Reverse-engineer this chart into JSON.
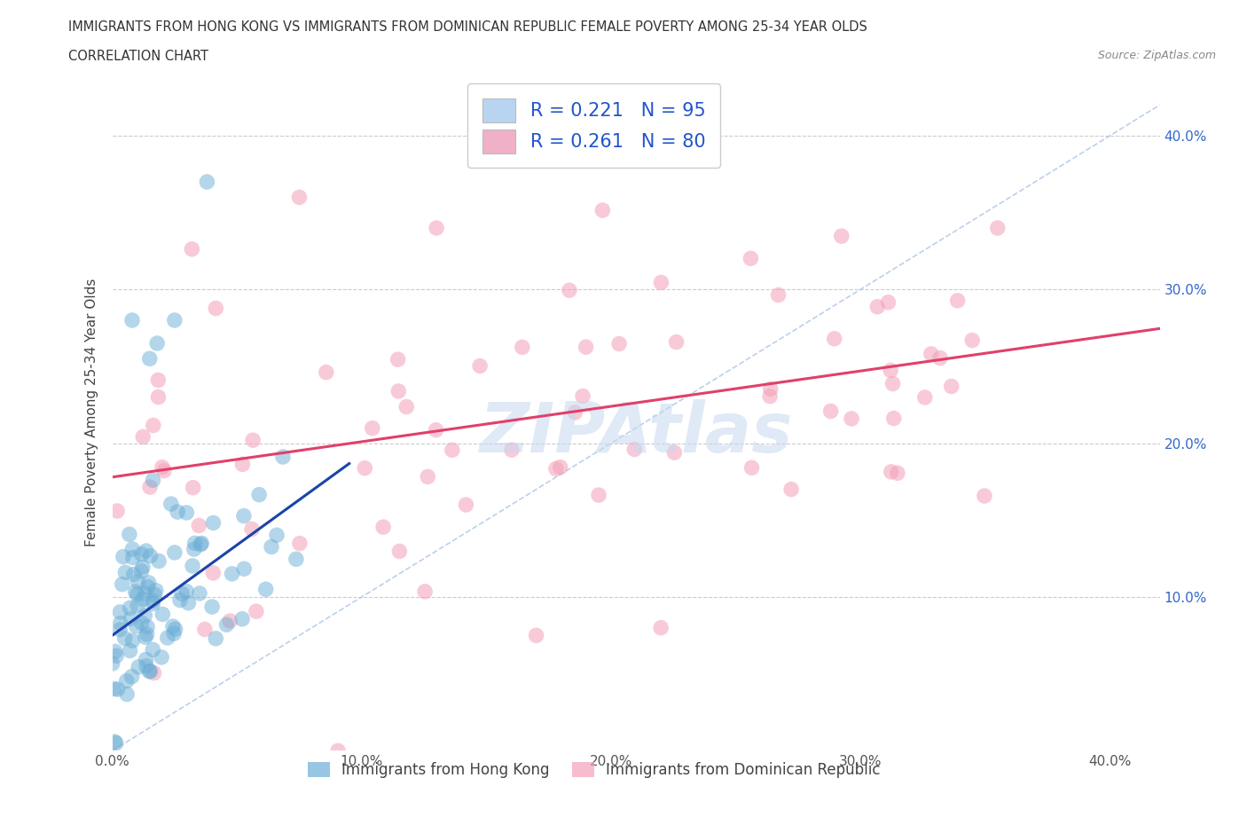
{
  "title_line1": "IMMIGRANTS FROM HONG KONG VS IMMIGRANTS FROM DOMINICAN REPUBLIC FEMALE POVERTY AMONG 25-34 YEAR OLDS",
  "title_line2": "CORRELATION CHART",
  "source_text": "Source: ZipAtlas.com",
  "ylabel": "Female Poverty Among 25-34 Year Olds",
  "xlim": [
    0.0,
    0.42
  ],
  "ylim": [
    0.0,
    0.44
  ],
  "xticks": [
    0.0,
    0.1,
    0.2,
    0.3,
    0.4
  ],
  "yticks": [
    0.0,
    0.1,
    0.2,
    0.3,
    0.4
  ],
  "xticklabels": [
    "0.0%",
    "10.0%",
    "20.0%",
    "30.0%",
    "40.0%"
  ],
  "left_yticklabels": [
    "",
    "",
    "",
    "",
    ""
  ],
  "right_yticklabels": [
    "",
    "10.0%",
    "20.0%",
    "30.0%",
    "40.0%"
  ],
  "legend_entries": [
    {
      "label": "R = 0.221   N = 95",
      "color": "#b8d4f0"
    },
    {
      "label": "R = 0.261   N = 80",
      "color": "#f0b0c8"
    }
  ],
  "hk_color": "#6baed6",
  "dr_color": "#f4a0b8",
  "hk_trend_color": "#1a44aa",
  "dr_trend_color": "#e0406a",
  "diag_color": "#b0c8e8",
  "watermark": "ZIPAtlas",
  "watermark_color": "#c8d8f0",
  "grid_color": "#cccccc",
  "title_color": "#333333",
  "hk_N": 95,
  "dr_N": 80,
  "hk_trend_x0": 0.0,
  "hk_trend_y0": 0.075,
  "hk_trend_x1": 0.085,
  "hk_trend_y1": 0.175,
  "dr_trend_x0": 0.0,
  "dr_trend_y0": 0.178,
  "dr_trend_x1": 0.4,
  "dr_trend_y1": 0.27
}
